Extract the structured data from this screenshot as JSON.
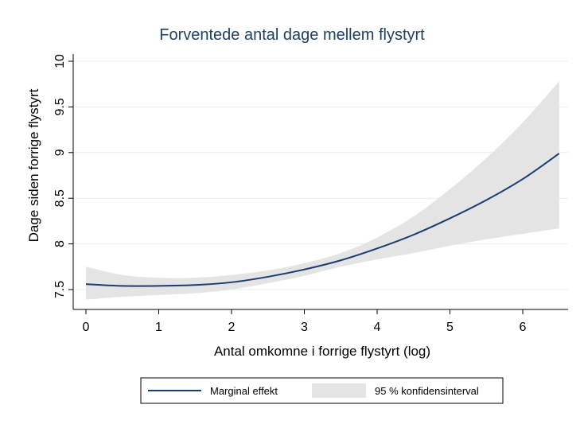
{
  "chart_data": {
    "type": "line",
    "title": "Forventede antal dage mellem flystyrt",
    "xlabel": "Antal omkomne i forrige flystyrt (log)",
    "ylabel": "Dage siden forrige flystyrt",
    "xlim": [
      0,
      6.5
    ],
    "ylim": [
      7.3,
      10
    ],
    "x_ticks": [
      "0",
      "1",
      "2",
      "3",
      "4",
      "5",
      "6"
    ],
    "x_tick_values": [
      0,
      1,
      2,
      3,
      4,
      5,
      6
    ],
    "y_ticks": [
      "7.5",
      "8",
      "8.5",
      "9",
      "9.5",
      "10"
    ],
    "y_tick_values": [
      7.5,
      8,
      8.5,
      9,
      9.5,
      10
    ],
    "grid": "horizontal",
    "legend_position": "bottom",
    "series": [
      {
        "name": "Marginal effekt",
        "kind": "line",
        "color": "#1a3d6d",
        "x": [
          0,
          0.5,
          1,
          1.5,
          2,
          2.5,
          3,
          3.5,
          4,
          4.5,
          5,
          5.5,
          6,
          6.5
        ],
        "y": [
          7.56,
          7.54,
          7.54,
          7.55,
          7.58,
          7.64,
          7.72,
          7.82,
          7.95,
          8.1,
          8.28,
          8.48,
          8.71,
          8.99
        ]
      },
      {
        "name": "95 % konfidensinterval",
        "kind": "band",
        "color": "#e4e4e4",
        "x": [
          0,
          0.5,
          1,
          1.5,
          2,
          2.5,
          3,
          3.5,
          4,
          4.5,
          5,
          5.5,
          6,
          6.5
        ],
        "lower": [
          7.39,
          7.42,
          7.44,
          7.46,
          7.5,
          7.57,
          7.65,
          7.75,
          7.83,
          7.9,
          7.98,
          8.05,
          8.11,
          8.17
        ],
        "upper": [
          7.75,
          7.66,
          7.63,
          7.63,
          7.66,
          7.71,
          7.79,
          7.9,
          8.07,
          8.3,
          8.6,
          8.94,
          9.33,
          9.78
        ]
      }
    ]
  }
}
